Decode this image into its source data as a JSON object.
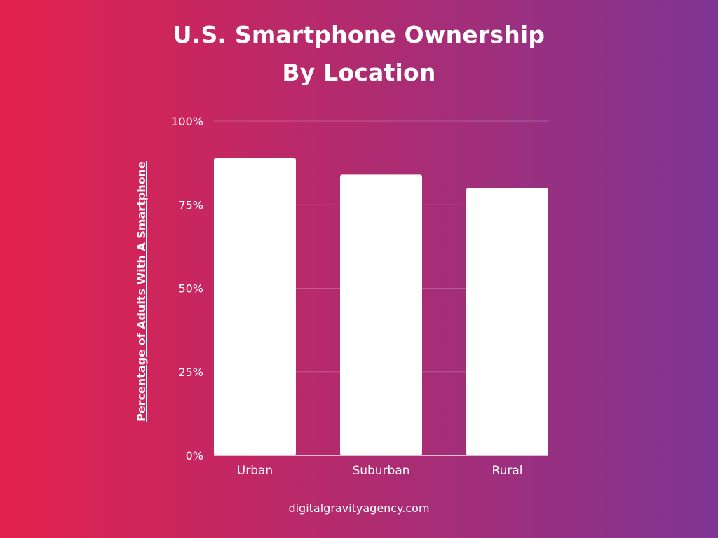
{
  "colors": {
    "gradient_start": "#e3214c",
    "gradient_end": "#7f3593",
    "bar": "#ffffff",
    "gridline": "#ffffff"
  },
  "title": {
    "line1": "U.S. Smartphone Ownership",
    "line2": "By Location"
  },
  "footer": {
    "text": "digitalgravityagency.com"
  },
  "chart_data": {
    "type": "bar",
    "title": "U.S. Smartphone Ownership By Location",
    "xlabel": "",
    "ylabel": "Percentage of Adults With A Smartphone",
    "categories": [
      "Urban",
      "Suburban",
      "Rural"
    ],
    "values": [
      89,
      84,
      80
    ],
    "ylim": [
      0,
      100
    ],
    "yticks": [
      0,
      25,
      50,
      75,
      100
    ],
    "ytick_labels": [
      "0%",
      "25%",
      "50%",
      "75%",
      "100%"
    ],
    "grid": true,
    "legend": "none"
  }
}
